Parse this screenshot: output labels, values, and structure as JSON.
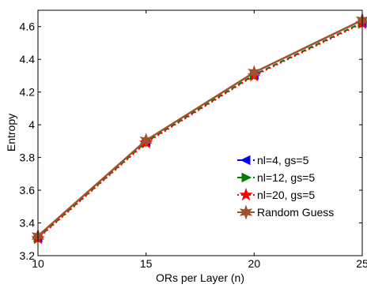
{
  "chart_data": {
    "type": "line",
    "title": "",
    "xlabel": "ORs per Layer (n)",
    "ylabel": "Entropy",
    "xlim": [
      10,
      25
    ],
    "ylim": [
      3.2,
      4.7
    ],
    "x": [
      10,
      15,
      20,
      25
    ],
    "xticks": [
      10,
      15,
      20,
      25
    ],
    "xtick_labels": [
      "10",
      "15",
      "20",
      "25"
    ],
    "yticks": [
      3.2,
      3.4,
      3.6,
      3.8,
      4.0,
      4.2,
      4.4,
      4.6
    ],
    "ytick_labels": [
      "3.2",
      "3.4",
      "3.6",
      "3.8",
      "4",
      "4.2",
      "4.4",
      "4.6"
    ],
    "grid": false,
    "legend": "center-right",
    "series": [
      {
        "name": "nl=4, gs=5",
        "values": [
          3.31,
          3.895,
          4.305,
          4.625
        ],
        "color": "#0000ff",
        "marker": "triangle-left",
        "line": "dashed"
      },
      {
        "name": "nl=12, gs=5",
        "values": [
          3.31,
          3.895,
          4.305,
          4.625
        ],
        "color": "#008000",
        "marker": "triangle-right",
        "line": "dashed"
      },
      {
        "name": "nl=20, gs=5",
        "values": [
          3.305,
          3.89,
          4.3,
          4.62
        ],
        "color": "#ff0000",
        "marker": "star",
        "line": "dotted"
      },
      {
        "name": "Random Guess",
        "values": [
          3.32,
          3.905,
          4.32,
          4.64
        ],
        "color": "#a0522d",
        "marker": "hexagram",
        "line": "solid"
      }
    ]
  }
}
